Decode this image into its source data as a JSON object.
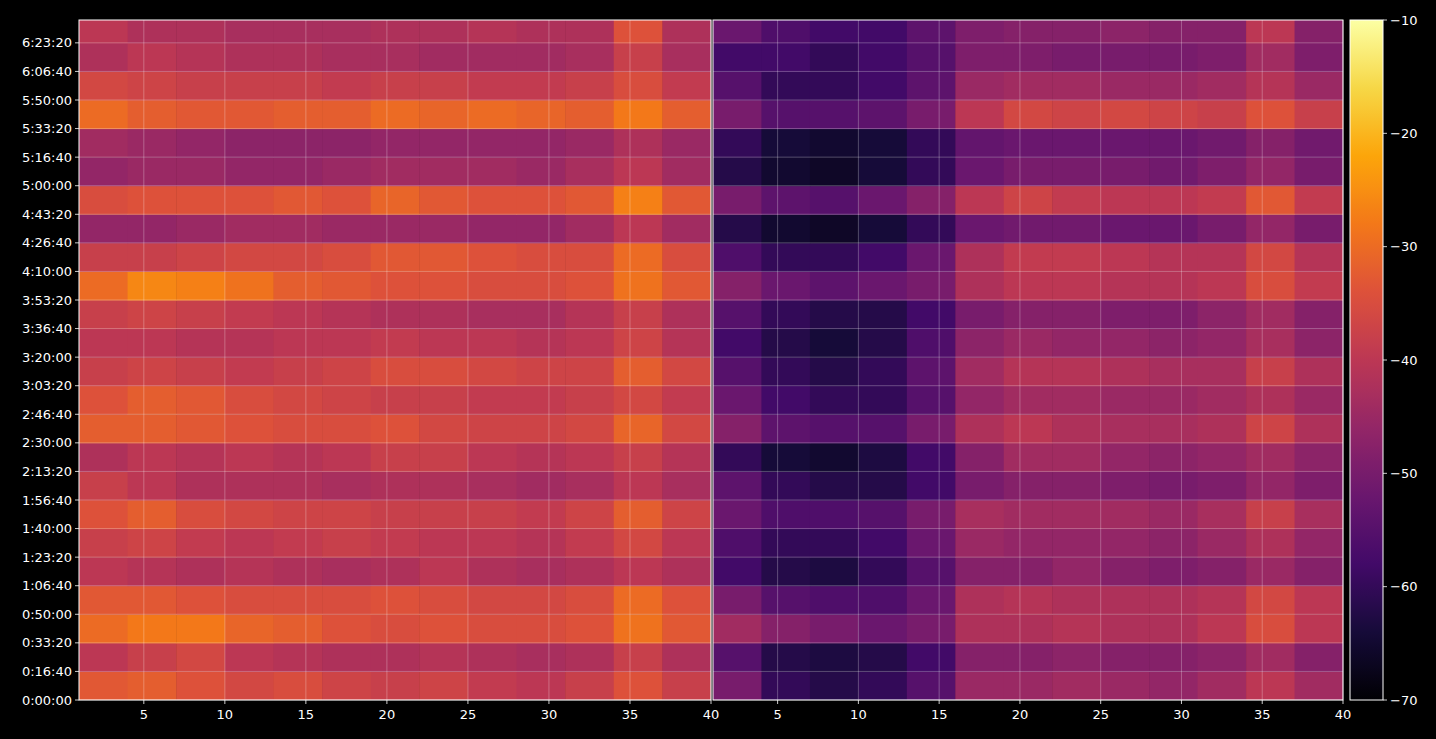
{
  "chart_data": [
    {
      "type": "heatmap",
      "grid": true,
      "xlim": [
        1,
        40
      ],
      "ylim": [
        0,
        23800
      ],
      "xticks": [
        5,
        10,
        15,
        20,
        25,
        30,
        35,
        40
      ],
      "yticks": [
        {
          "value": 0,
          "label": "0:00:00"
        },
        {
          "value": 1000,
          "label": "0:16:40"
        },
        {
          "value": 2000,
          "label": "0:33:20"
        },
        {
          "value": 3000,
          "label": "0:50:00"
        },
        {
          "value": 4000,
          "label": "1:06:40"
        },
        {
          "value": 5000,
          "label": "1:23:20"
        },
        {
          "value": 6000,
          "label": "1:40:00"
        },
        {
          "value": 7000,
          "label": "1:56:40"
        },
        {
          "value": 8000,
          "label": "2:13:20"
        },
        {
          "value": 9000,
          "label": "2:30:00"
        },
        {
          "value": 10000,
          "label": "2:46:40"
        },
        {
          "value": 11000,
          "label": "3:03:20"
        },
        {
          "value": 12000,
          "label": "3:20:00"
        },
        {
          "value": 13000,
          "label": "3:36:40"
        },
        {
          "value": 14000,
          "label": "3:53:20"
        },
        {
          "value": 15000,
          "label": "4:10:00"
        },
        {
          "value": 16000,
          "label": "4:26:40"
        },
        {
          "value": 17000,
          "label": "4:43:20"
        },
        {
          "value": 18000,
          "label": "5:00:00"
        },
        {
          "value": 19000,
          "label": "5:16:40"
        },
        {
          "value": 20000,
          "label": "5:33:20"
        },
        {
          "value": 21000,
          "label": "5:50:00"
        },
        {
          "value": 22000,
          "label": "6:06:40"
        },
        {
          "value": 23000,
          "label": "6:23:20"
        }
      ],
      "x_edges": [
        1,
        4,
        7,
        10,
        13,
        16,
        19,
        22,
        25,
        28,
        31,
        34,
        37,
        40
      ],
      "y_edges": [
        0,
        1000,
        2000,
        3000,
        4000,
        5000,
        6000,
        7000,
        8000,
        9000,
        10000,
        11000,
        12000,
        13000,
        14000,
        15000,
        16000,
        17000,
        18000,
        19000,
        20000,
        21000,
        22000,
        23000,
        24000
      ],
      "values": [
        [
          -33,
          -32,
          -34,
          -36,
          -35,
          -37,
          -38,
          -37,
          -39,
          -40,
          -38,
          -34,
          -38
        ],
        [
          -40,
          -38,
          -36,
          -40,
          -41,
          -42,
          -42,
          -41,
          -42,
          -43,
          -42,
          -38,
          -42
        ],
        [
          -30,
          -28,
          -28,
          -31,
          -32,
          -34,
          -35,
          -34,
          -35,
          -35,
          -34,
          -29,
          -33
        ],
        [
          -33,
          -33,
          -34,
          -35,
          -35,
          -35,
          -34,
          -35,
          -36,
          -36,
          -35,
          -30,
          -34
        ],
        [
          -40,
          -41,
          -42,
          -41,
          -42,
          -43,
          -42,
          -40,
          -42,
          -43,
          -42,
          -40,
          -42
        ],
        [
          -38,
          -37,
          -39,
          -40,
          -39,
          -38,
          -39,
          -40,
          -40,
          -41,
          -39,
          -36,
          -40
        ],
        [
          -34,
          -32,
          -35,
          -36,
          -37,
          -37,
          -38,
          -38,
          -38,
          -39,
          -37,
          -32,
          -37
        ],
        [
          -38,
          -40,
          -42,
          -42,
          -42,
          -43,
          -42,
          -42,
          -43,
          -44,
          -43,
          -40,
          -43
        ],
        [
          -42,
          -40,
          -41,
          -40,
          -41,
          -40,
          -38,
          -38,
          -40,
          -41,
          -40,
          -38,
          -41
        ],
        [
          -32,
          -32,
          -33,
          -34,
          -35,
          -35,
          -34,
          -36,
          -37,
          -37,
          -36,
          -31,
          -36
        ],
        [
          -34,
          -32,
          -33,
          -35,
          -36,
          -37,
          -38,
          -38,
          -39,
          -39,
          -38,
          -36,
          -39
        ],
        [
          -38,
          -37,
          -38,
          -39,
          -38,
          -37,
          -35,
          -35,
          -36,
          -37,
          -37,
          -32,
          -36
        ],
        [
          -40,
          -40,
          -41,
          -41,
          -40,
          -40,
          -39,
          -40,
          -40,
          -41,
          -40,
          -37,
          -41
        ],
        [
          -38,
          -37,
          -38,
          -39,
          -40,
          -41,
          -42,
          -42,
          -43,
          -43,
          -41,
          -38,
          -42
        ],
        [
          -30,
          -26,
          -27,
          -29,
          -32,
          -33,
          -34,
          -34,
          -35,
          -35,
          -34,
          -29,
          -33
        ],
        [
          -38,
          -38,
          -37,
          -36,
          -36,
          -35,
          -33,
          -33,
          -34,
          -35,
          -35,
          -30,
          -35
        ],
        [
          -46,
          -46,
          -45,
          -44,
          -44,
          -45,
          -45,
          -45,
          -46,
          -46,
          -44,
          -40,
          -44
        ],
        [
          -35,
          -34,
          -34,
          -34,
          -33,
          -34,
          -31,
          -33,
          -34,
          -34,
          -33,
          -27,
          -33
        ],
        [
          -46,
          -45,
          -45,
          -46,
          -46,
          -45,
          -44,
          -44,
          -44,
          -45,
          -43,
          -40,
          -44
        ],
        [
          -44,
          -45,
          -46,
          -47,
          -47,
          -47,
          -46,
          -46,
          -46,
          -46,
          -45,
          -42,
          -45
        ],
        [
          -30,
          -32,
          -33,
          -33,
          -32,
          -32,
          -30,
          -31,
          -30,
          -31,
          -32,
          -28,
          -32
        ],
        [
          -36,
          -37,
          -38,
          -38,
          -38,
          -39,
          -38,
          -38,
          -39,
          -39,
          -38,
          -35,
          -39
        ],
        [
          -42,
          -40,
          -41,
          -42,
          -42,
          -43,
          -43,
          -44,
          -44,
          -44,
          -43,
          -38,
          -43
        ],
        [
          -40,
          -42,
          -42,
          -43,
          -43,
          -43,
          -42,
          -42,
          -41,
          -42,
          -42,
          -34,
          -42
        ]
      ]
    },
    {
      "type": "heatmap",
      "grid": true,
      "tick_labels": "x",
      "xlim": [
        1,
        40
      ],
      "ylim": [
        0,
        23800
      ],
      "xticks": [
        5,
        10,
        15,
        20,
        25,
        30,
        35,
        40
      ],
      "yticks": [
        0,
        1000,
        2000,
        3000,
        4000,
        5000,
        6000,
        7000,
        8000,
        9000,
        10000,
        11000,
        12000,
        13000,
        14000,
        15000,
        16000,
        17000,
        18000,
        19000,
        20000,
        21000,
        22000,
        23000
      ],
      "x_edges": [
        1,
        4,
        7,
        10,
        13,
        16,
        19,
        22,
        25,
        28,
        31,
        34,
        37,
        40
      ],
      "y_edges": [
        0,
        1000,
        2000,
        3000,
        4000,
        5000,
        6000,
        7000,
        8000,
        9000,
        10000,
        11000,
        12000,
        13000,
        14000,
        15000,
        16000,
        17000,
        18000,
        19000,
        20000,
        21000,
        22000,
        23000,
        24000
      ],
      "values": [
        [
          -50,
          -60,
          -62,
          -60,
          -55,
          -45,
          -45,
          -44,
          -45,
          -46,
          -44,
          -40,
          -44
        ],
        [
          -55,
          -62,
          -63,
          -62,
          -58,
          -48,
          -48,
          -47,
          -48,
          -48,
          -47,
          -44,
          -48
        ],
        [
          -44,
          -48,
          -50,
          -52,
          -50,
          -42,
          -42,
          -41,
          -42,
          -42,
          -40,
          -35,
          -40
        ],
        [
          -50,
          -55,
          -56,
          -56,
          -52,
          -42,
          -41,
          -42,
          -42,
          -42,
          -41,
          -36,
          -40
        ],
        [
          -58,
          -62,
          -63,
          -60,
          -55,
          -48,
          -48,
          -46,
          -48,
          -49,
          -48,
          -45,
          -48
        ],
        [
          -56,
          -60,
          -60,
          -58,
          -52,
          -45,
          -46,
          -46,
          -46,
          -47,
          -45,
          -42,
          -46
        ],
        [
          -52,
          -56,
          -56,
          -55,
          -50,
          -43,
          -44,
          -44,
          -44,
          -45,
          -43,
          -38,
          -43
        ],
        [
          -54,
          -60,
          -62,
          -62,
          -58,
          -50,
          -48,
          -48,
          -49,
          -50,
          -49,
          -46,
          -49
        ],
        [
          -60,
          -64,
          -65,
          -63,
          -58,
          -48,
          -44,
          -44,
          -46,
          -47,
          -46,
          -44,
          -47
        ],
        [
          -48,
          -54,
          -55,
          -55,
          -50,
          -42,
          -40,
          -42,
          -43,
          -43,
          -42,
          -37,
          -42
        ],
        [
          -52,
          -58,
          -60,
          -60,
          -55,
          -46,
          -44,
          -44,
          -45,
          -45,
          -44,
          -42,
          -45
        ],
        [
          -55,
          -60,
          -62,
          -60,
          -54,
          -44,
          -41,
          -41,
          -42,
          -43,
          -43,
          -38,
          -42
        ],
        [
          -58,
          -62,
          -64,
          -62,
          -56,
          -47,
          -45,
          -46,
          -46,
          -47,
          -46,
          -43,
          -47
        ],
        [
          -55,
          -60,
          -62,
          -62,
          -58,
          -50,
          -48,
          -48,
          -49,
          -49,
          -47,
          -44,
          -48
        ],
        [
          -48,
          -52,
          -54,
          -52,
          -50,
          -42,
          -40,
          -40,
          -41,
          -41,
          -40,
          -35,
          -39
        ],
        [
          -56,
          -60,
          -60,
          -58,
          -52,
          -42,
          -39,
          -39,
          -40,
          -41,
          -41,
          -36,
          -41
        ],
        [
          -62,
          -65,
          -66,
          -64,
          -60,
          -52,
          -51,
          -51,
          -52,
          -52,
          -50,
          -46,
          -50
        ],
        [
          -50,
          -54,
          -55,
          -52,
          -48,
          -40,
          -37,
          -39,
          -40,
          -40,
          -39,
          -33,
          -39
        ],
        [
          -62,
          -65,
          -66,
          -64,
          -60,
          -52,
          -50,
          -50,
          -50,
          -51,
          -49,
          -46,
          -50
        ],
        [
          -60,
          -64,
          -65,
          -64,
          -60,
          -53,
          -52,
          -52,
          -52,
          -52,
          -51,
          -48,
          -51
        ],
        [
          -50,
          -55,
          -55,
          -54,
          -50,
          -40,
          -36,
          -37,
          -36,
          -37,
          -38,
          -34,
          -38
        ],
        [
          -55,
          -60,
          -60,
          -58,
          -54,
          -45,
          -44,
          -44,
          -45,
          -45,
          -44,
          -41,
          -45
        ],
        [
          -58,
          -58,
          -60,
          -58,
          -55,
          -49,
          -49,
          -50,
          -50,
          -50,
          -49,
          -44,
          -49
        ],
        [
          -52,
          -56,
          -58,
          -58,
          -54,
          -49,
          -48,
          -48,
          -47,
          -48,
          -48,
          -40,
          -48
        ]
      ],
      "colorbar_range": [
        -70,
        -10
      ],
      "colorbar_ticks": [
        {
          "value": -70,
          "label": "−70"
        },
        {
          "value": -60,
          "label": "−60"
        },
        {
          "value": -50,
          "label": "−50"
        },
        {
          "value": -40,
          "label": "−40"
        },
        {
          "value": -30,
          "label": "−30"
        },
        {
          "value": -20,
          "label": "−20"
        },
        {
          "value": -10,
          "label": "−10"
        }
      ]
    }
  ]
}
